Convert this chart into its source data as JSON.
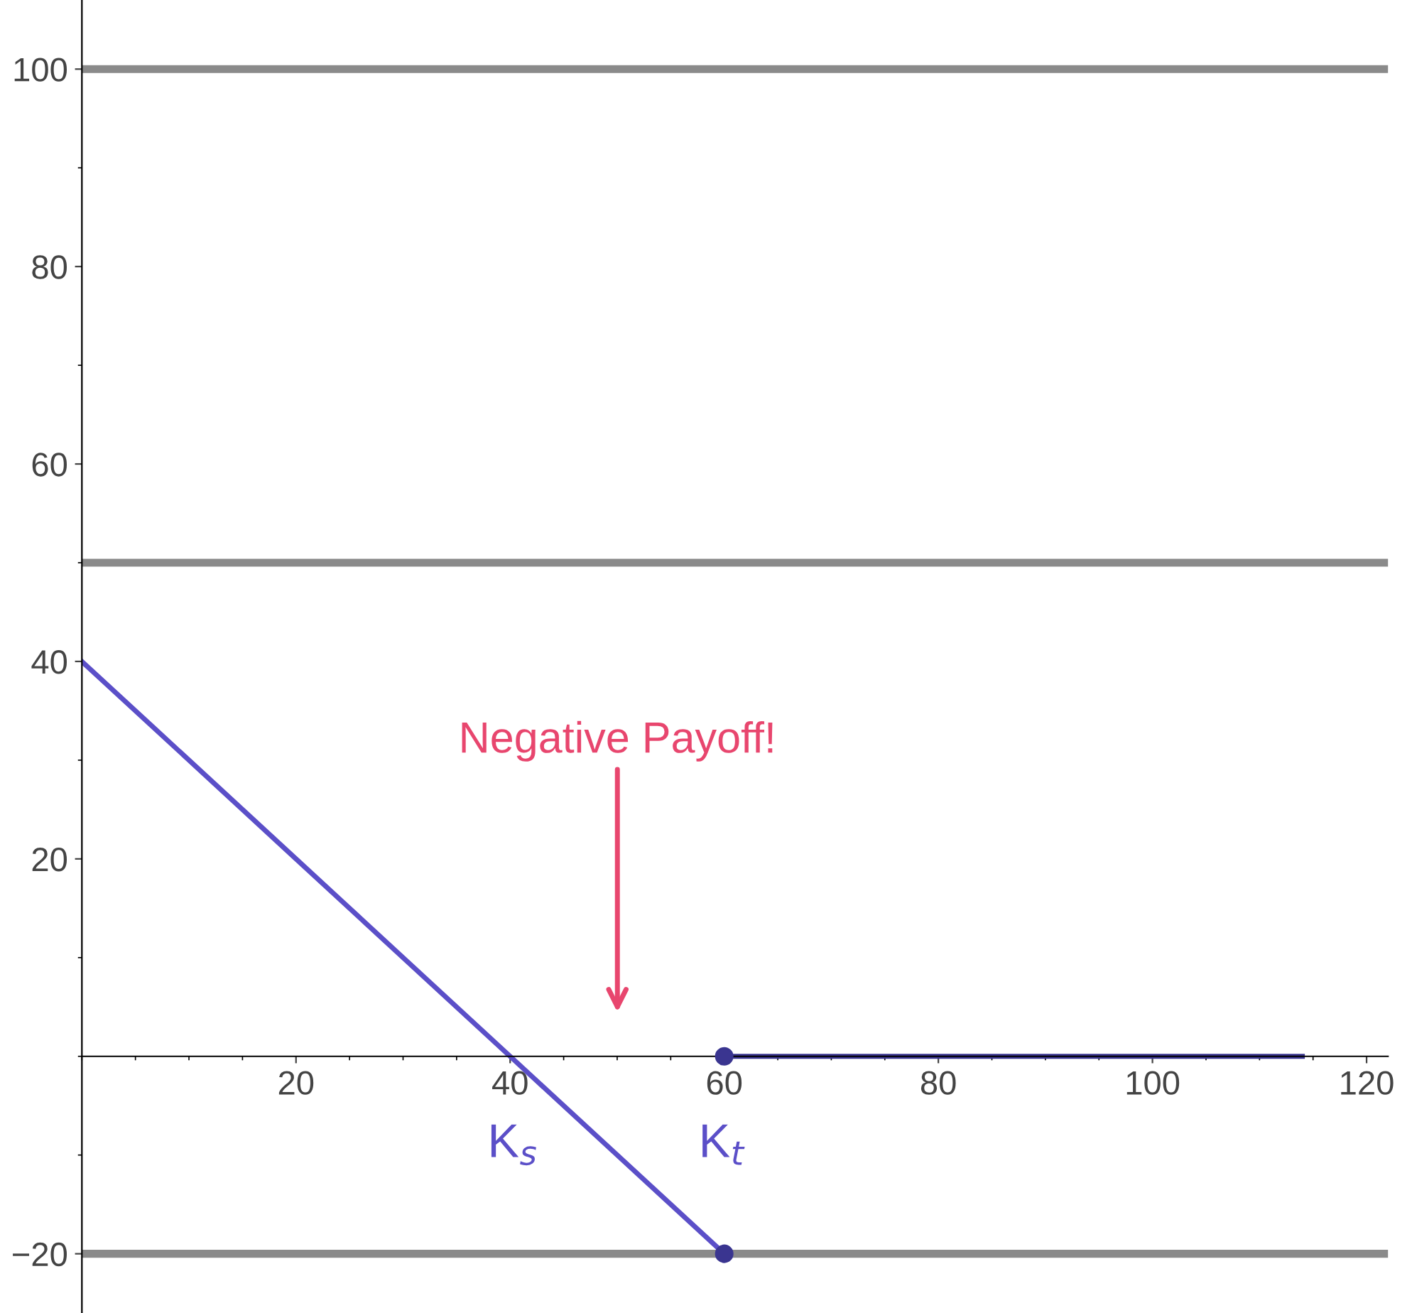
{
  "chart_data": {
    "type": "line",
    "series": [
      {
        "color": "#5b4fc8",
        "x": [
          0,
          20,
          40,
          60
        ],
        "values": [
          40,
          20,
          0,
          -20
        ]
      },
      {
        "color": "#3a3590",
        "x": [
          60,
          80,
          100,
          114
        ],
        "values": [
          0,
          0,
          0,
          0
        ]
      },
      {
        "type": "scatter",
        "color": "#3a3590",
        "x": [
          60,
          60
        ],
        "values": [
          -20,
          0
        ]
      }
    ],
    "xlim": [
      0,
      122
    ],
    "ylim": [
      -26,
      107
    ],
    "xticks": [
      20,
      40,
      60,
      80,
      100,
      120
    ],
    "yticks": [
      -20,
      20,
      40,
      60,
      80,
      100
    ],
    "ref_lines": [
      {
        "axis": "y",
        "value": 100,
        "color": "#8a8a8a"
      },
      {
        "axis": "y",
        "value": 50,
        "color": "#8a8a8a"
      },
      {
        "axis": "y",
        "value": -20,
        "color": "#8a8a8a"
      }
    ],
    "annotations": [
      "Negative Payoff!",
      "K$_{s}$",
      "K$_{t}$"
    ],
    "grid": false,
    "legend": false
  }
}
